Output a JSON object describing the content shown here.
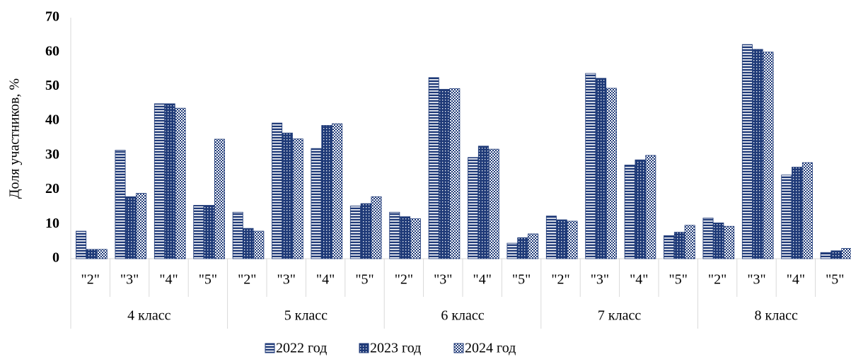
{
  "chart_data": {
    "type": "bar",
    "y_label": "Доля участников, %",
    "categories": [
      "\"2\"",
      "\"3\"",
      "\"4\"",
      "\"5\"",
      "\"2\"",
      "\"3\"",
      "\"4\"",
      "\"5\"",
      "\"2\"",
      "\"3\"",
      "\"4\"",
      "\"5\"",
      "\"2\"",
      "\"3\"",
      "\"4\"",
      "\"5\"",
      "\"2\"",
      "\"3\"",
      "\"4\"",
      "\"5\""
    ],
    "groups": [
      "4 класс",
      "5 класс",
      "6 класс",
      "7 класс",
      "8 класс"
    ],
    "series": [
      {
        "name": "2022 год",
        "color": "#1f3a78",
        "pattern": "stripes",
        "values": [
          8,
          31.5,
          45,
          15.5,
          13.5,
          39.4,
          32,
          15.3,
          13.5,
          52.6,
          29.4,
          4.5,
          12.4,
          53.8,
          27.2,
          6.7,
          11.8,
          62.2,
          24.3,
          1.8
        ]
      },
      {
        "name": "2023 год",
        "color": "#1f3a78",
        "pattern": "dots",
        "values": [
          2.7,
          18,
          45,
          15.5,
          8.8,
          36.5,
          38.7,
          16,
          12.2,
          49.2,
          32.7,
          6.1,
          11.3,
          52.4,
          28.7,
          7.7,
          10.4,
          60.8,
          26.6,
          2.3
        ]
      },
      {
        "name": "2024 год",
        "color": "#1f3a78",
        "pattern": "checks",
        "values": [
          2.7,
          19,
          43.7,
          34.7,
          8,
          34.8,
          39.2,
          18,
          11.6,
          49.4,
          31.8,
          7.2,
          10.9,
          49.5,
          30,
          9.7,
          9.4,
          60,
          27.9,
          3
        ]
      }
    ],
    "ylim": [
      0,
      70
    ],
    "yticks": [
      0,
      10,
      20,
      30,
      40,
      50,
      60,
      70
    ],
    "grid": false,
    "legend": "bottom"
  }
}
